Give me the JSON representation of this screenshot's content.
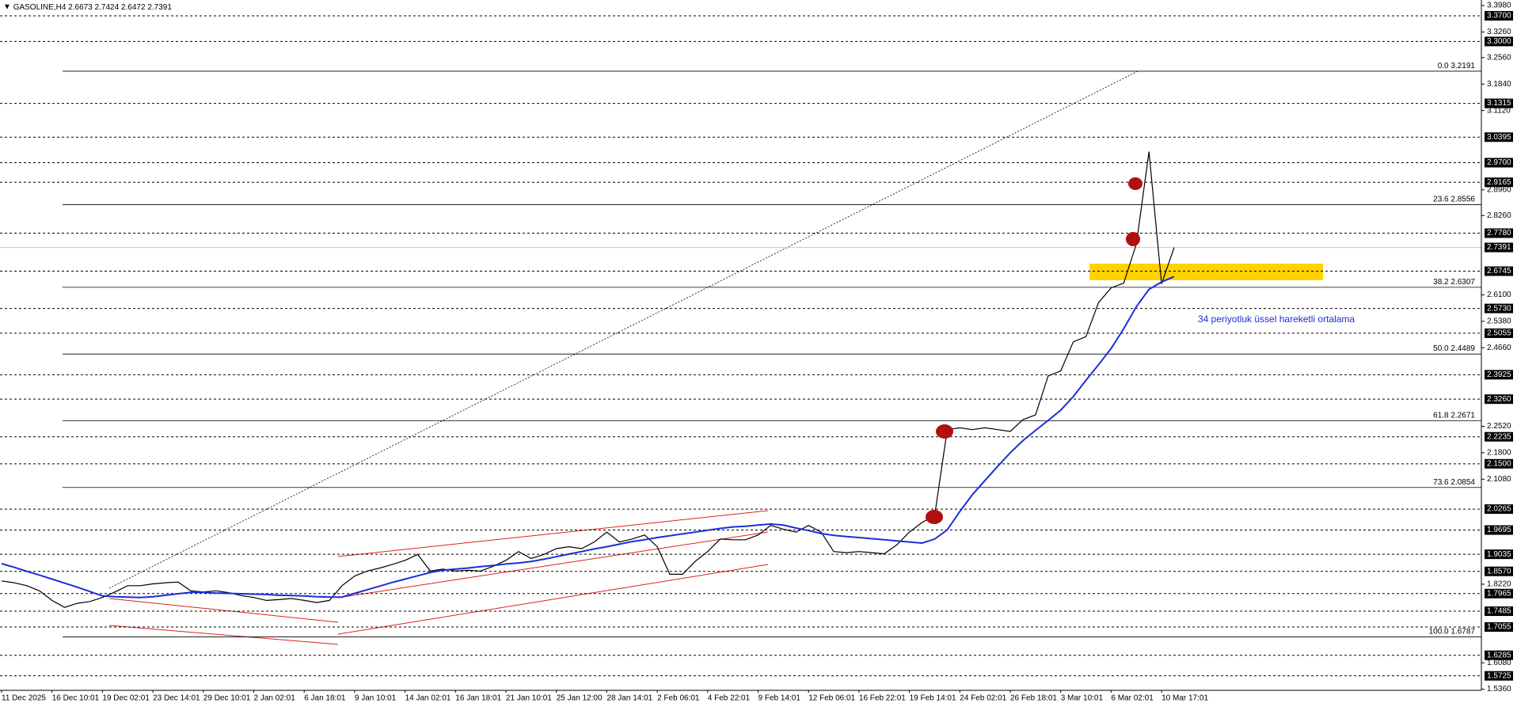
{
  "chart_data": {
    "type": "line",
    "title": "GASOLINE,H4",
    "ohlc": [
      2.6673,
      2.7424,
      2.6472,
      2.7391
    ],
    "annotation": "34 periyotluk üssel hareketli ortalama",
    "ylim": [
      1.533,
      3.413
    ],
    "categories": [
      "11 Dec 2025",
      null,
      null,
      null,
      "16 Dec 10:01",
      null,
      null,
      null,
      "19 Dec 02:01",
      null,
      null,
      null,
      "23 Dec 14:01",
      null,
      null,
      null,
      "29 Dec 10:01",
      null,
      null,
      null,
      "2 Jan 02:01",
      null,
      null,
      null,
      "6 Jan 18:01",
      null,
      null,
      null,
      "9 Jan 10:01",
      null,
      null,
      null,
      "14 Jan 02:01",
      null,
      null,
      null,
      "16 Jan 18:01",
      null,
      null,
      null,
      "21 Jan 10:01",
      null,
      null,
      null,
      "25 Jan 12:00",
      null,
      null,
      null,
      "28 Jan 14:01",
      null,
      null,
      null,
      "2 Feb 06:01",
      null,
      null,
      null,
      "4 Feb 22:01",
      null,
      null,
      null,
      "9 Feb 14:01",
      null,
      null,
      null,
      "12 Feb 06:01",
      null,
      null,
      null,
      "16 Feb 22:01",
      null,
      null,
      null,
      "19 Feb 14:01",
      null,
      null,
      null,
      "24 Feb 02:01",
      null,
      null,
      null,
      "26 Feb 18:01",
      null,
      null,
      null,
      "3 Mar 10:01",
      null,
      null,
      null,
      "6 Mar 02:01",
      null,
      null,
      null,
      "10 Mar 17:01",
      null
    ],
    "series": [
      {
        "color": "#000000",
        "values": [
          1.831,
          1.826,
          1.818,
          1.804,
          1.778,
          1.759,
          1.77,
          1.775,
          1.786,
          1.801,
          1.818,
          1.818,
          1.823,
          1.826,
          1.828,
          1.804,
          1.801,
          1.804,
          1.799,
          1.791,
          1.786,
          1.778,
          1.78,
          1.783,
          1.778,
          1.772,
          1.778,
          1.818,
          1.844,
          1.858,
          1.866,
          1.876,
          1.887,
          1.903,
          1.858,
          1.863,
          1.858,
          1.86,
          1.858,
          1.871,
          1.887,
          1.911,
          1.892,
          1.903,
          1.919,
          1.924,
          1.919,
          1.937,
          1.964,
          1.937,
          1.945,
          1.956,
          1.924,
          1.849,
          1.849,
          1.884,
          1.911,
          1.945,
          1.943,
          1.943,
          1.956,
          1.982,
          1.972,
          1.964,
          1.982,
          1.964,
          1.911,
          1.908,
          1.911,
          1.908,
          1.905,
          1.929,
          1.964,
          1.99,
          2.009,
          2.243,
          2.248,
          2.243,
          2.248,
          2.243,
          2.238,
          2.27,
          2.283,
          2.389,
          2.403,
          2.482,
          2.496,
          2.589,
          2.629,
          2.642,
          2.749,
          3.0,
          2.64,
          2.739
        ]
      },
      {
        "color": "#1c2fd6",
        "values": [
          1.878,
          1.868,
          1.857,
          1.847,
          1.836,
          1.825,
          1.814,
          1.802,
          1.79,
          1.788,
          1.787,
          1.786,
          1.788,
          1.792,
          1.796,
          1.8,
          1.8,
          1.798,
          1.797,
          1.796,
          1.795,
          1.794,
          1.792,
          1.791,
          1.79,
          1.788,
          1.787,
          1.787,
          1.797,
          1.807,
          1.817,
          1.827,
          1.836,
          1.845,
          1.854,
          1.86,
          1.863,
          1.866,
          1.87,
          1.873,
          1.877,
          1.88,
          1.884,
          1.89,
          1.897,
          1.904,
          1.911,
          1.918,
          1.924,
          1.931,
          1.938,
          1.943,
          1.949,
          1.954,
          1.959,
          1.964,
          1.969,
          1.974,
          1.978,
          1.98,
          1.983,
          1.986,
          1.983,
          1.975,
          1.968,
          1.96,
          1.955,
          1.952,
          1.949,
          1.946,
          1.943,
          1.94,
          1.937,
          1.934,
          1.945,
          1.97,
          2.02,
          2.066,
          2.105,
          2.143,
          2.18,
          2.213,
          2.241,
          2.268,
          2.296,
          2.333,
          2.377,
          2.42,
          2.464,
          2.518,
          2.578,
          2.625,
          2.645,
          2.66
        ]
      }
    ],
    "yticks": [
      {
        "value": 3.398,
        "label": "3.3980"
      },
      {
        "value": 3.326,
        "label": "3.3260"
      },
      {
        "value": 3.256,
        "label": "3.2560"
      },
      {
        "value": 3.184,
        "label": "3.1840"
      },
      {
        "value": 3.112,
        "label": "3.1120"
      },
      {
        "value": 2.896,
        "label": "2.8960"
      },
      {
        "value": 2.826,
        "label": "2.8260"
      },
      {
        "value": 2.61,
        "label": "2.6100"
      },
      {
        "value": 2.538,
        "label": "2.5380"
      },
      {
        "value": 2.466,
        "label": "2.4660"
      },
      {
        "value": 2.252,
        "label": "2.2520"
      },
      {
        "value": 2.18,
        "label": "2.1800"
      },
      {
        "value": 2.108,
        "label": "2.1080"
      },
      {
        "value": 1.822,
        "label": "1.8220"
      },
      {
        "value": 1.608,
        "label": "1.6080"
      },
      {
        "value": 1.536,
        "label": "1.5360"
      }
    ],
    "levels": [
      {
        "value": 3.37,
        "label": "3.3700"
      },
      {
        "value": 3.3,
        "label": "3.3000"
      },
      {
        "value": 3.1315,
        "label": "3.1315"
      },
      {
        "value": 3.0395,
        "label": "3.0395"
      },
      {
        "value": 2.97,
        "label": "2.9700"
      },
      {
        "value": 2.9165,
        "label": "2.9165"
      },
      {
        "value": 2.778,
        "label": "2.7780"
      },
      {
        "value": 2.6745,
        "label": "2.6745"
      },
      {
        "value": 2.573,
        "label": "2.5730"
      },
      {
        "value": 2.5055,
        "label": "2.5055"
      },
      {
        "value": 2.3925,
        "label": "2.3925"
      },
      {
        "value": 2.326,
        "label": "2.3260"
      },
      {
        "value": 2.2235,
        "label": "2.2235"
      },
      {
        "value": 2.15,
        "label": "2.1500"
      },
      {
        "value": 2.0265,
        "label": "2.0265"
      },
      {
        "value": 1.9695,
        "label": "1.9695"
      },
      {
        "value": 1.9035,
        "label": "1.9035"
      },
      {
        "value": 1.857,
        "label": "1.8570"
      },
      {
        "value": 1.7965,
        "label": "1.7965"
      },
      {
        "value": 1.7485,
        "label": "1.7485"
      },
      {
        "value": 1.7055,
        "label": "1.7055"
      },
      {
        "value": 1.6285,
        "label": "1.6285"
      },
      {
        "value": 1.5725,
        "label": "1.5725"
      }
    ],
    "current_price": {
      "value": 2.7391,
      "label": "2.7391"
    },
    "fibs": [
      {
        "label": "0.0",
        "value": 3.2191
      },
      {
        "label": "23.6",
        "value": 2.8556
      },
      {
        "label": "38.2",
        "value": 2.6307
      },
      {
        "label": "50.0",
        "value": 2.4489
      },
      {
        "label": "61.8",
        "value": 2.2671
      },
      {
        "label": "73.6",
        "value": 2.0854
      },
      {
        "label": "100.0",
        "value": 1.6787
      }
    ]
  }
}
